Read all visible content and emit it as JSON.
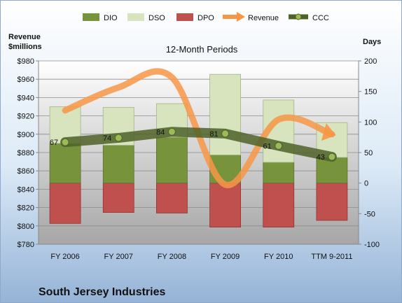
{
  "chart_data": {
    "type": "bar",
    "title": "12-Month Periods",
    "company": "South Jersey Industries",
    "left_axis_label": [
      "Revenue",
      "$millions"
    ],
    "right_axis_label": "Days",
    "categories": [
      "FY 2006",
      "FY 2007",
      "FY 2008",
      "FY 2009",
      "FY 2010",
      "TTM 9-2011"
    ],
    "left_axis": {
      "min": 780,
      "max": 980,
      "step": 20,
      "ticks": [
        "$780",
        "$800",
        "$820",
        "$840",
        "$860",
        "$880",
        "$900",
        "$920",
        "$940",
        "$960",
        "$980"
      ]
    },
    "right_axis": {
      "min": -100,
      "max": 200,
      "step": 50,
      "ticks": [
        "-100",
        "-50",
        "0",
        "50",
        "100",
        "150",
        "200"
      ]
    },
    "legend": [
      "DIO",
      "DSO",
      "DPO",
      "Revenue",
      "CCC"
    ],
    "series": [
      {
        "name": "DIO",
        "axis": "right",
        "kind": "stacked-bar",
        "color": "#77933C",
        "values": [
          65,
          62,
          75,
          46,
          34,
          42
        ]
      },
      {
        "name": "DSO",
        "axis": "right",
        "kind": "stacked-bar",
        "color": "#D7E4BD",
        "values": [
          60,
          62,
          55,
          132,
          102,
          57
        ]
      },
      {
        "name": "DPO",
        "axis": "right",
        "kind": "negative-bar",
        "color": "#C0504D",
        "values": [
          -66,
          -48,
          -49,
          -72,
          -72,
          -61
        ]
      },
      {
        "name": "Revenue",
        "axis": "left",
        "kind": "line",
        "color": "#F79646",
        "values": [
          926,
          951,
          962,
          845,
          916,
          900
        ]
      },
      {
        "name": "CCC",
        "axis": "right",
        "kind": "line",
        "color": "#4F6228",
        "values": [
          67,
          74,
          84,
          81,
          61,
          43
        ]
      }
    ],
    "ccc_labels": [
      "67",
      "74",
      "84",
      "81",
      "61",
      "43"
    ]
  }
}
